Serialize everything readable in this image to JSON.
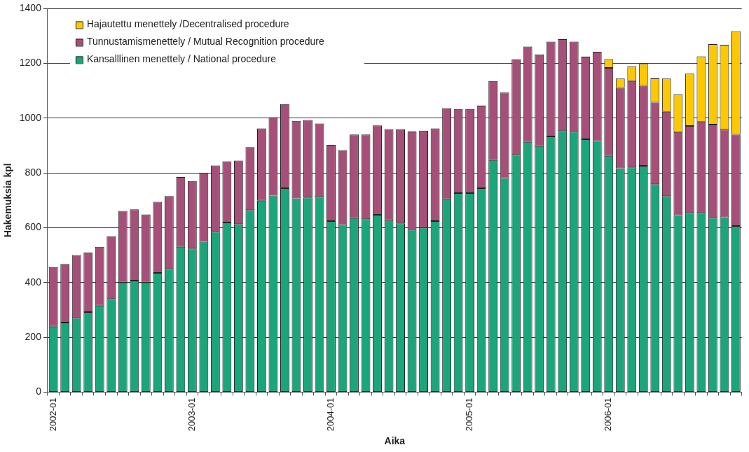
{
  "chart_data": {
    "type": "bar",
    "stacked": true,
    "xlabel": "Aika",
    "ylabel": "Hakemuksia kpl",
    "categories": [
      "2002-01",
      null,
      null,
      null,
      null,
      null,
      null,
      null,
      null,
      null,
      null,
      null,
      "2003-01",
      null,
      null,
      null,
      null,
      null,
      null,
      null,
      null,
      null,
      null,
      null,
      "2004-01",
      null,
      null,
      null,
      null,
      null,
      null,
      null,
      null,
      null,
      null,
      null,
      "2005-01",
      null,
      null,
      null,
      null,
      null,
      null,
      null,
      null,
      null,
      null,
      null,
      "2006-01",
      null,
      null,
      null,
      null,
      null,
      null,
      null,
      null,
      null,
      null,
      null
    ],
    "series": [
      {
        "name": "Kansalllinen menettely / National procedure",
        "color": "#1ba57a",
        "values": [
          239,
          254,
          271,
          292,
          316,
          340,
          400,
          407,
          400,
          435,
          450,
          530,
          524,
          549,
          585,
          619,
          613,
          664,
          699,
          717,
          744,
          707,
          710,
          713,
          624,
          610,
          635,
          631,
          647,
          627,
          616,
          593,
          600,
          624,
          704,
          726,
          726,
          744,
          847,
          781,
          866,
          913,
          898,
          933,
          953,
          950,
          923,
          916,
          862,
          817,
          820,
          826,
          759,
          715,
          646,
          654,
          654,
          636,
          638,
          606
        ]
      },
      {
        "name": "Tunnustamismenettely / Mutual Recognition procedure",
        "color": "#a64f78",
        "values": [
          217,
          214,
          229,
          218,
          214,
          229,
          261,
          260,
          248,
          259,
          265,
          255,
          246,
          252,
          242,
          223,
          232,
          230,
          263,
          286,
          307,
          283,
          283,
          267,
          278,
          273,
          305,
          309,
          326,
          333,
          344,
          358,
          354,
          338,
          332,
          307,
          307,
          301,
          288,
          312,
          348,
          348,
          334,
          346,
          335,
          329,
          301,
          326,
          321,
          293,
          315,
          292,
          298,
          308,
          303,
          317,
          333,
          340,
          320,
          333
        ]
      },
      {
        "name": "Hajautettu menettely /Decentralised procedure",
        "color": "#fdc800",
        "values": [
          null,
          null,
          null,
          null,
          null,
          null,
          null,
          null,
          null,
          null,
          null,
          null,
          null,
          null,
          null,
          null,
          null,
          null,
          null,
          null,
          null,
          null,
          null,
          null,
          null,
          null,
          null,
          null,
          null,
          null,
          null,
          null,
          null,
          null,
          null,
          null,
          null,
          null,
          null,
          null,
          null,
          null,
          null,
          null,
          null,
          null,
          null,
          null,
          31,
          34,
          54,
          80,
          88,
          121,
          138,
          191,
          238,
          294,
          309,
          378
        ]
      }
    ],
    "ylim": [
      0,
      1400
    ],
    "yticks": [
      0,
      200,
      400,
      600,
      800,
      1000,
      1200,
      1400
    ],
    "grid": "y",
    "legend": "top left"
  }
}
